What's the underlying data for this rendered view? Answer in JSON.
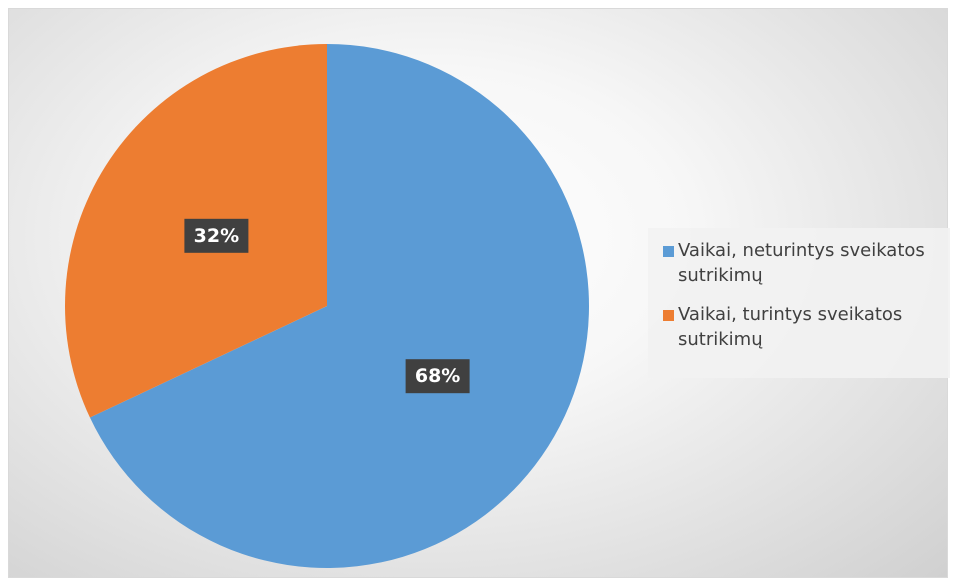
{
  "chart_data": {
    "type": "pie",
    "categories": [
      "Vaikai, neturintys sveikatos sutrikimų",
      "Vaikai, turintys sveikatos sutrikimų"
    ],
    "values": [
      68,
      32
    ],
    "value_labels": [
      "68%",
      "32%"
    ],
    "colors": [
      "#5b9bd5",
      "#ed7d31"
    ],
    "legend": "right"
  }
}
